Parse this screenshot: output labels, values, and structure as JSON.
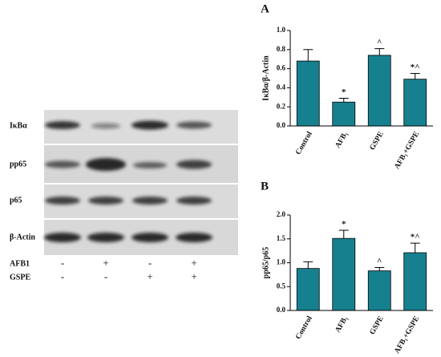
{
  "blot": {
    "rows": [
      "IκBα",
      "pp65",
      "p65",
      "β-Actin"
    ],
    "treatments": [
      {
        "name": "AFB1",
        "signs": [
          "-",
          "+",
          "-",
          "+"
        ]
      },
      {
        "name": "GSPE",
        "signs": [
          "-",
          "-",
          "+",
          "+"
        ]
      }
    ]
  },
  "chart_data": [
    {
      "type": "bar",
      "panel": "A",
      "ylabel": "IκBα/β-Actin",
      "categories": [
        "Control",
        "AFB₁",
        "GSPE",
        "AFB₁+GSPE"
      ],
      "values": [
        0.68,
        0.25,
        0.74,
        0.49
      ],
      "errors": [
        0.12,
        0.04,
        0.07,
        0.06
      ],
      "annotations": [
        null,
        "*",
        "^",
        "*^"
      ],
      "color": "#17808f",
      "ylim": [
        0,
        1
      ],
      "yticks": [
        {
          "value": 0,
          "label": "0.0"
        },
        0.2,
        0.4,
        0.6,
        0.8,
        {
          "value": 1,
          "label": "1.0"
        }
      ]
    },
    {
      "type": "bar",
      "panel": "B",
      "ylabel": "pp65/p65",
      "categories": [
        "Control",
        "AFB₁",
        "GSPE",
        "AFB₁+GSPE"
      ],
      "values": [
        0.88,
        1.51,
        0.83,
        1.21
      ],
      "errors": [
        0.14,
        0.17,
        0.07,
        0.2
      ],
      "annotations": [
        null,
        "*",
        "^",
        "*^"
      ],
      "color": "#17808f",
      "ylim": [
        0,
        2
      ],
      "yticks": [
        {
          "value": 0,
          "label": "0.0"
        },
        0.5,
        {
          "value": 1,
          "label": "1.0"
        },
        1.5,
        {
          "value": 2,
          "label": "2.0"
        }
      ]
    }
  ]
}
